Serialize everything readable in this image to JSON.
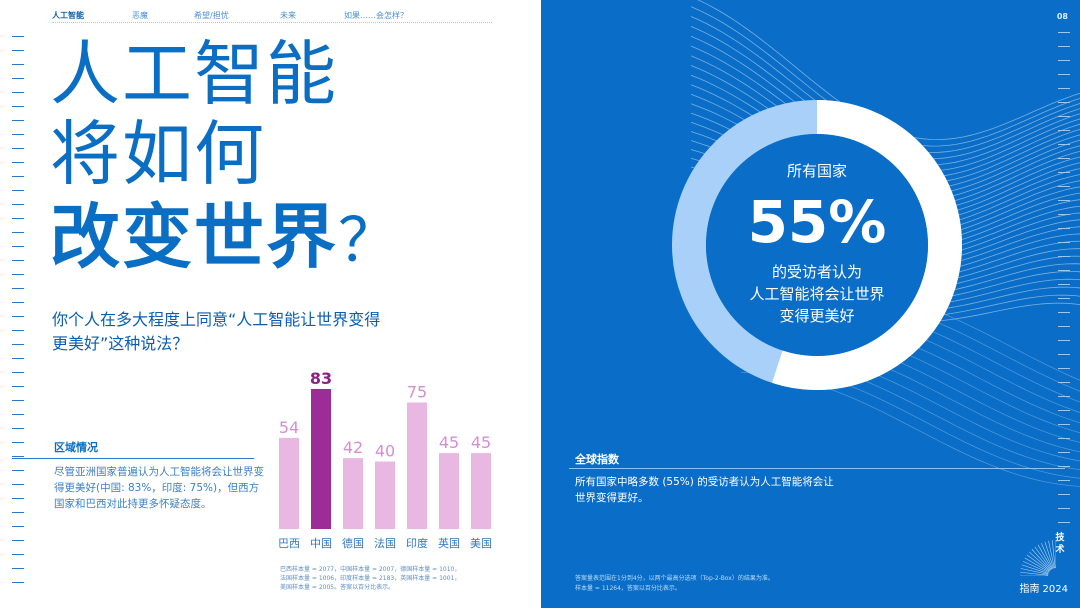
{
  "nav": {
    "items": [
      {
        "label": "人工智能",
        "active": true
      },
      {
        "label": "恶魔",
        "active": false
      },
      {
        "label": "希望/担忧",
        "active": false
      },
      {
        "label": "未来",
        "active": false
      },
      {
        "label": "如果……会怎样？",
        "active": false
      }
    ]
  },
  "page_number": "08",
  "hero": {
    "line1": "人工智能",
    "line2": "将如何",
    "line3": "改变世界",
    "line3_mark": "？"
  },
  "question": "你个人在多大程度上同意“人工智能让世界变得更美好”这种说法？",
  "region": {
    "title": "区域情况",
    "text": "尽管亚洲国家普遍认为人工智能将会让世界变得更美好(中国: 83%，印度: 75%)，但西方国家和巴西对此持更多怀疑态度。"
  },
  "chart_data": {
    "type": "bar",
    "categories": [
      "巴西",
      "中国",
      "德国",
      "法国",
      "印度",
      "英国",
      "美国"
    ],
    "values": [
      54,
      83,
      42,
      40,
      75,
      45,
      45
    ],
    "highlight": "中国",
    "ylim": [
      0,
      100
    ],
    "colors": {
      "normal": "#e8b8e2",
      "highlight": "#9c2c96",
      "label_normal": "#d58fd0",
      "label_highlight": "#8a2285"
    }
  },
  "footnote": [
    "巴西样本量 = 2077，中国样本量 = 2007，德国样本量 = 1010，",
    "法国样本量 = 1006，印度样本量 = 2183，英国样本量 = 1001，",
    "美国样本量 = 2005。答案以百分比表示。"
  ],
  "donut": {
    "lead": "所有国家",
    "percent": "55%",
    "desc_lines": [
      "的受访者认为",
      "人工智能将会让世界",
      "变得更美好"
    ],
    "value": 55,
    "colors": {
      "filled": "#ffffff",
      "rest": "#a8d0f8",
      "center": "#0a6ec8"
    }
  },
  "global": {
    "title": "全球指数",
    "text": "所有国家中略多数 (55%) 的受访者认为人工智能将会让世界变得更好。"
  },
  "right_footnote": [
    "答案量表范围在1分到4分，以两个最高分选项（Top-2-Box）的结果为准。",
    "样本量 = 11264，答案以百分比表示。"
  ],
  "side_label": "技术",
  "brand": {
    "name": "指南",
    "year": "2024"
  },
  "colors": {
    "brand_blue": "#0a6ec8",
    "title_blue": "#0a6ec4"
  }
}
